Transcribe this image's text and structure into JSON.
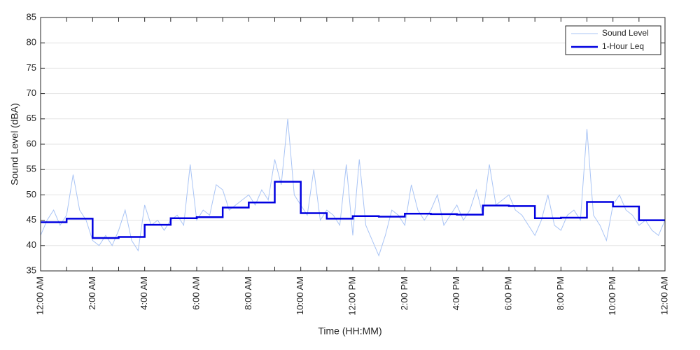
{
  "chart_data": {
    "type": "line",
    "xlabel": "Time (HH:MM)",
    "ylabel": "Sound Level (dBA)",
    "xlim": [
      0,
      24
    ],
    "ylim": [
      35,
      85
    ],
    "xticks": [
      {
        "value": 0,
        "label": "12:00 AM"
      },
      {
        "value": 2,
        "label": "2:00 AM"
      },
      {
        "value": 4,
        "label": "4:00 AM"
      },
      {
        "value": 6,
        "label": "6:00 AM"
      },
      {
        "value": 8,
        "label": "8:00 AM"
      },
      {
        "value": 10,
        "label": "10:00 AM"
      },
      {
        "value": 12,
        "label": "12:00 PM"
      },
      {
        "value": 14,
        "label": "2:00 PM"
      },
      {
        "value": 16,
        "label": "4:00 PM"
      },
      {
        "value": 18,
        "label": "6:00 PM"
      },
      {
        "value": 20,
        "label": "8:00 PM"
      },
      {
        "value": 22,
        "label": "10:00 PM"
      },
      {
        "value": 24,
        "label": "12:00 AM"
      }
    ],
    "yticks": [
      35,
      40,
      45,
      50,
      55,
      60,
      65,
      70,
      75,
      80,
      85
    ],
    "grid": true,
    "legend": "upper right",
    "series": [
      {
        "name": "Sound Level",
        "color": "#a9c4f5",
        "width": 1,
        "x": [
          0,
          0.25,
          0.5,
          0.75,
          1,
          1.25,
          1.5,
          1.75,
          2,
          2.25,
          2.5,
          2.75,
          3,
          3.25,
          3.5,
          3.75,
          4,
          4.25,
          4.5,
          4.75,
          5,
          5.25,
          5.5,
          5.75,
          6,
          6.25,
          6.5,
          6.75,
          7,
          7.25,
          7.5,
          7.75,
          8,
          8.25,
          8.5,
          8.75,
          9,
          9.25,
          9.5,
          9.75,
          10,
          10.25,
          10.5,
          10.75,
          11,
          11.25,
          11.5,
          11.75,
          12,
          12.25,
          12.5,
          12.75,
          13,
          13.25,
          13.5,
          13.75,
          14,
          14.25,
          14.5,
          14.75,
          15,
          15.25,
          15.5,
          15.75,
          16,
          16.25,
          16.5,
          16.75,
          17,
          17.25,
          17.5,
          17.75,
          18,
          18.25,
          18.5,
          18.75,
          19,
          19.25,
          19.5,
          19.75,
          20,
          20.25,
          20.5,
          20.75,
          21,
          21.25,
          21.5,
          21.75,
          22,
          22.25,
          22.5,
          22.75,
          23,
          23.25,
          23.5,
          23.75,
          24
        ],
        "values": [
          42,
          45,
          47,
          44,
          46,
          54,
          47,
          45,
          41,
          40,
          42,
          40,
          43,
          47,
          41,
          39,
          48,
          44,
          45,
          43,
          45,
          46,
          44,
          56,
          45,
          47,
          46,
          52,
          51,
          47,
          48,
          49,
          50,
          48,
          51,
          49,
          57,
          52,
          65,
          50,
          48,
          46,
          55,
          45,
          47,
          46,
          44,
          56,
          42,
          57,
          44,
          41,
          38,
          42,
          47,
          46,
          44,
          52,
          47,
          45,
          47,
          50,
          44,
          46,
          48,
          45,
          47,
          51,
          46,
          56,
          48,
          49,
          50,
          47,
          46,
          44,
          42,
          45,
          50,
          44,
          43,
          46,
          47,
          45,
          63,
          46,
          44,
          41,
          48,
          50,
          47,
          46,
          44,
          45,
          43,
          42,
          45
        ]
      },
      {
        "name": "1-Hour Leq",
        "color": "#0000e0",
        "width": 2.5,
        "drawstyle": "steps-post",
        "x": [
          0,
          1,
          2,
          3,
          4,
          5,
          6,
          7,
          8,
          9,
          10,
          11,
          12,
          13,
          14,
          15,
          16,
          17,
          18,
          19,
          20,
          21,
          22,
          23
        ],
        "values": [
          44.6,
          45.3,
          41.5,
          41.7,
          44.1,
          45.4,
          45.6,
          47.5,
          48.5,
          52.6,
          46.4,
          45.3,
          45.8,
          45.7,
          46.3,
          46.2,
          46.1,
          47.9,
          47.8,
          45.4,
          45.5,
          48.6,
          47.7,
          45.0
        ]
      }
    ]
  }
}
